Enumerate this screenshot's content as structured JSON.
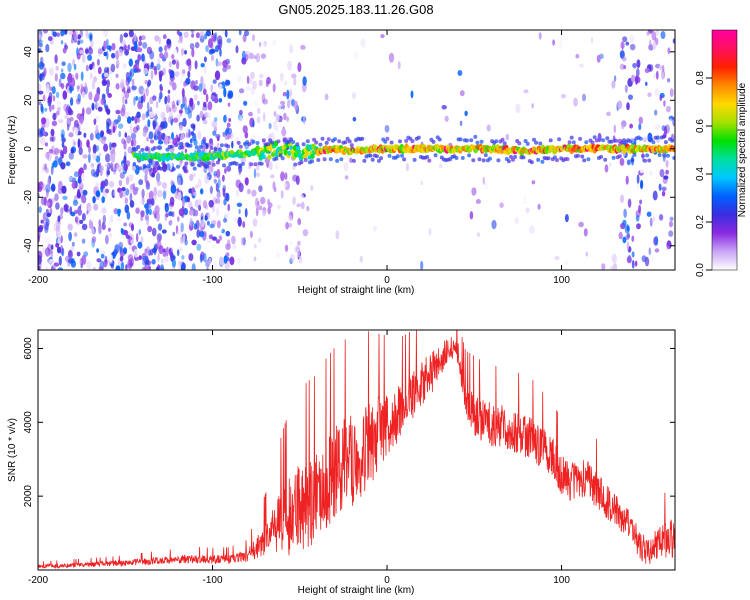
{
  "figure_title": "GN05.2025.183.11.26.G08",
  "chart_data": [
    {
      "type": "heatmap",
      "title": "",
      "xlabel": "Height of straight line (km)",
      "ylabel": "Frequency (Hz)",
      "xlim": [
        -200,
        165
      ],
      "ylim": [
        -50,
        49
      ],
      "x_ticks": [
        -200,
        -100,
        0,
        100
      ],
      "y_ticks": [
        -40,
        -20,
        0,
        20,
        40
      ],
      "colorbar": {
        "label": "Normalized spectral amplitude",
        "range": [
          0,
          1
        ],
        "ticks": [
          "0.0",
          "0.2",
          "0.4",
          "0.6",
          "0.8"
        ],
        "colors": [
          "#ffffff",
          "#c9a6f5",
          "#8a2be2",
          "#3a2ce0",
          "#0060ff",
          "#00c8ff",
          "#00e0a0",
          "#00e000",
          "#a8e000",
          "#ffd800",
          "#ff8800",
          "#ff2000",
          "#ff1060",
          "#ff00a0"
        ]
      },
      "ridge": {
        "x": [
          -145,
          -120,
          -100,
          -80,
          -70,
          -60,
          -50,
          -45,
          -40,
          -30,
          -20,
          -10,
          0,
          20,
          40,
          60,
          80,
          100,
          120,
          140,
          165
        ],
        "y": [
          -3,
          -3.5,
          -3,
          -2,
          -1,
          0,
          -2,
          -1,
          -1,
          0,
          -1,
          0,
          0,
          0,
          0,
          0,
          -1,
          0,
          0,
          0,
          0
        ]
      },
      "grid": false,
      "legend": "colorbar-right"
    },
    {
      "type": "line",
      "title": "",
      "xlabel": "Height of straight line (km)",
      "ylabel": "SNR (10 * v/v)",
      "xlim": [
        -200,
        165
      ],
      "ylim": [
        0,
        6500
      ],
      "x_ticks": [
        -200,
        -100,
        0,
        100
      ],
      "y_ticks": [
        2000,
        4000,
        6000
      ],
      "series": [
        {
          "color": "#ee2222",
          "x": [
            -200,
            -190,
            -180,
            -170,
            -160,
            -150,
            -140,
            -130,
            -120,
            -110,
            -100,
            -90,
            -80,
            -70,
            -65,
            -60,
            -55,
            -50,
            -45,
            -40,
            -35,
            -30,
            -25,
            -20,
            -15,
            -10,
            -5,
            0,
            5,
            10,
            15,
            20,
            25,
            30,
            35,
            40,
            45,
            50,
            55,
            60,
            65,
            70,
            75,
            80,
            85,
            90,
            95,
            100,
            105,
            110,
            115,
            120,
            125,
            130,
            135,
            140,
            145,
            150,
            155,
            160,
            165
          ],
          "values": [
            100,
            120,
            140,
            160,
            180,
            200,
            240,
            280,
            300,
            330,
            300,
            320,
            420,
            900,
            1200,
            1500,
            1700,
            1900,
            2000,
            2300,
            2600,
            2900,
            3100,
            3200,
            3400,
            3600,
            3900,
            4100,
            4300,
            4600,
            4900,
            5200,
            5400,
            5700,
            6000,
            6100,
            4700,
            4300,
            4150,
            4050,
            4000,
            3900,
            3850,
            3750,
            3600,
            3400,
            3150,
            2700,
            2500,
            2600,
            2500,
            2300,
            2000,
            1800,
            1400,
            1300,
            700,
            600,
            800,
            900,
            1000
          ],
          "spread": [
            50,
            55,
            60,
            65,
            70,
            80,
            90,
            100,
            110,
            120,
            120,
            120,
            160,
            450,
            600,
            900,
            1100,
            1200,
            1250,
            1200,
            1250,
            1250,
            1250,
            1250,
            1200,
            1150,
            1000,
            900,
            800,
            700,
            650,
            600,
            600,
            500,
            400,
            300,
            500,
            600,
            600,
            600,
            600,
            600,
            600,
            600,
            600,
            550,
            550,
            550,
            550,
            550,
            550,
            500,
            500,
            450,
            450,
            400,
            400,
            400,
            400,
            500,
            600
          ]
        }
      ],
      "grid": false,
      "legend": "none"
    }
  ]
}
